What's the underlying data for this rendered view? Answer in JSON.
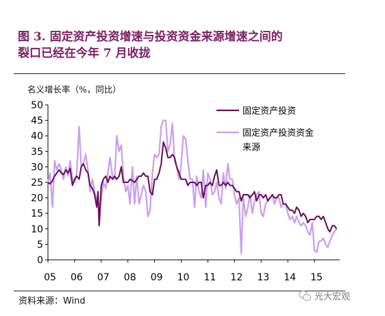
{
  "header": {
    "title_line1": "图 3.   固定资产投资增速与投资资金来源增速之间的",
    "title_line2": "裂口已经在今年 7 月收拢"
  },
  "footer": {
    "source": "资料来源：Wind"
  },
  "watermark": {
    "text": "光大宏观",
    "icon": "wechat-icon"
  },
  "colors": {
    "title": "#7b1f63",
    "series1": "#6b0f5a",
    "series2": "#c9a0f0"
  },
  "chart_data": {
    "type": "line",
    "ylabel": "名义增长率（%，同比）",
    "xlabel": "",
    "ylim": [
      0,
      50
    ],
    "yticks": [
      "0",
      "5",
      "10",
      "15",
      "20",
      "25",
      "30",
      "35",
      "40",
      "45",
      "50"
    ],
    "xticks": [
      "05",
      "06",
      "07",
      "08",
      "09",
      "10",
      "11",
      "12",
      "13",
      "14",
      "15"
    ],
    "xlim": [
      2005,
      2015.95
    ],
    "grid": false,
    "legend_position": "top-right",
    "series": [
      {
        "name": "固定资产投资",
        "color": "#6b0f5a",
        "points": [
          [
            2005.0,
            25
          ],
          [
            2005.08,
            24.5
          ],
          [
            2005.17,
            25.5
          ],
          [
            2005.25,
            27
          ],
          [
            2005.33,
            28
          ],
          [
            2005.42,
            29
          ],
          [
            2005.5,
            28
          ],
          [
            2005.58,
            27.5
          ],
          [
            2005.67,
            29
          ],
          [
            2005.75,
            28
          ],
          [
            2005.83,
            29.5
          ],
          [
            2005.92,
            24
          ],
          [
            2006.0,
            26
          ],
          [
            2006.08,
            27
          ],
          [
            2006.17,
            26
          ],
          [
            2006.25,
            30
          ],
          [
            2006.33,
            31
          ],
          [
            2006.42,
            29
          ],
          [
            2006.5,
            28
          ],
          [
            2006.58,
            24
          ],
          [
            2006.67,
            23
          ],
          [
            2006.75,
            21
          ],
          [
            2006.83,
            17
          ],
          [
            2006.88,
            22
          ],
          [
            2006.92,
            11
          ],
          [
            2007.0,
            24
          ],
          [
            2007.08,
            26
          ],
          [
            2007.17,
            27
          ],
          [
            2007.25,
            25
          ],
          [
            2007.33,
            27
          ],
          [
            2007.42,
            26
          ],
          [
            2007.5,
            27
          ],
          [
            2007.58,
            26
          ],
          [
            2007.67,
            27
          ],
          [
            2007.75,
            30
          ],
          [
            2007.83,
            25
          ],
          [
            2007.92,
            25
          ],
          [
            2008.0,
            25
          ],
          [
            2008.08,
            26
          ],
          [
            2008.17,
            25.5
          ],
          [
            2008.25,
            25
          ],
          [
            2008.33,
            26
          ],
          [
            2008.42,
            27
          ],
          [
            2008.5,
            27
          ],
          [
            2008.58,
            28
          ],
          [
            2008.67,
            27
          ],
          [
            2008.75,
            27
          ],
          [
            2008.83,
            22
          ],
          [
            2008.92,
            21
          ],
          [
            2009.0,
            26
          ],
          [
            2009.08,
            26
          ],
          [
            2009.17,
            28
          ],
          [
            2009.25,
            31
          ],
          [
            2009.33,
            38
          ],
          [
            2009.42,
            36
          ],
          [
            2009.5,
            33
          ],
          [
            2009.58,
            33
          ],
          [
            2009.67,
            34
          ],
          [
            2009.75,
            33
          ],
          [
            2009.83,
            30
          ],
          [
            2009.92,
            28
          ],
          [
            2010.0,
            26
          ],
          [
            2010.08,
            26
          ],
          [
            2010.17,
            26
          ],
          [
            2010.25,
            24
          ],
          [
            2010.33,
            25
          ],
          [
            2010.42,
            25
          ],
          [
            2010.5,
            25
          ],
          [
            2010.58,
            24
          ],
          [
            2010.67,
            25
          ],
          [
            2010.75,
            25
          ],
          [
            2010.83,
            20
          ],
          [
            2010.92,
            24
          ],
          [
            2011.0,
            24
          ],
          [
            2011.08,
            25
          ],
          [
            2011.17,
            24
          ],
          [
            2011.25,
            27
          ],
          [
            2011.33,
            29
          ],
          [
            2011.42,
            24
          ],
          [
            2011.5,
            24
          ],
          [
            2011.58,
            25
          ],
          [
            2011.67,
            24
          ],
          [
            2011.75,
            25
          ],
          [
            2011.83,
            24
          ],
          [
            2011.92,
            24
          ],
          [
            2012.0,
            23
          ],
          [
            2012.08,
            22
          ],
          [
            2012.17,
            22
          ],
          [
            2012.25,
            19
          ],
          [
            2012.33,
            21
          ],
          [
            2012.42,
            21
          ],
          [
            2012.5,
            21
          ],
          [
            2012.58,
            20
          ],
          [
            2012.67,
            21
          ],
          [
            2012.75,
            22
          ],
          [
            2012.83,
            19
          ],
          [
            2012.92,
            21
          ],
          [
            2013.0,
            21
          ],
          [
            2013.08,
            20
          ],
          [
            2013.17,
            21
          ],
          [
            2013.25,
            19
          ],
          [
            2013.33,
            20
          ],
          [
            2013.42,
            21
          ],
          [
            2013.5,
            20
          ],
          [
            2013.58,
            20
          ],
          [
            2013.67,
            21
          ],
          [
            2013.75,
            21
          ],
          [
            2013.83,
            18
          ],
          [
            2013.92,
            18
          ],
          [
            2014.0,
            17
          ],
          [
            2014.08,
            16
          ],
          [
            2014.17,
            16
          ],
          [
            2014.25,
            15
          ],
          [
            2014.33,
            17
          ],
          [
            2014.42,
            16
          ],
          [
            2014.5,
            14
          ],
          [
            2014.58,
            15
          ],
          [
            2014.67,
            14
          ],
          [
            2014.75,
            12
          ],
          [
            2014.83,
            13
          ],
          [
            2014.92,
            13
          ],
          [
            2015.0,
            13
          ],
          [
            2015.08,
            14
          ],
          [
            2015.17,
            14
          ],
          [
            2015.25,
            13
          ],
          [
            2015.33,
            14
          ],
          [
            2015.42,
            12
          ],
          [
            2015.5,
            10
          ],
          [
            2015.58,
            9
          ],
          [
            2015.67,
            11
          ],
          [
            2015.75,
            11
          ],
          [
            2015.83,
            10
          ]
        ]
      },
      {
        "name": "固定资产投资资金来源",
        "color": "#c9a0f0",
        "points": [
          [
            2005.0,
            25
          ],
          [
            2005.08,
            28
          ],
          [
            2005.17,
            17
          ],
          [
            2005.25,
            32
          ],
          [
            2005.33,
            29
          ],
          [
            2005.42,
            31
          ],
          [
            2005.5,
            29
          ],
          [
            2005.58,
            26
          ],
          [
            2005.67,
            30
          ],
          [
            2005.75,
            27
          ],
          [
            2005.83,
            32
          ],
          [
            2005.92,
            26
          ],
          [
            2006.0,
            25
          ],
          [
            2006.08,
            28
          ],
          [
            2006.17,
            43
          ],
          [
            2006.25,
            30
          ],
          [
            2006.33,
            31
          ],
          [
            2006.42,
            34
          ],
          [
            2006.5,
            29
          ],
          [
            2006.58,
            22
          ],
          [
            2006.67,
            26
          ],
          [
            2006.75,
            22
          ],
          [
            2006.83,
            19
          ],
          [
            2006.88,
            21
          ],
          [
            2006.92,
            11
          ],
          [
            2007.0,
            20
          ],
          [
            2007.08,
            25
          ],
          [
            2007.17,
            23
          ],
          [
            2007.25,
            28
          ],
          [
            2007.33,
            33
          ],
          [
            2007.42,
            27
          ],
          [
            2007.5,
            26
          ],
          [
            2007.58,
            40
          ],
          [
            2007.67,
            35
          ],
          [
            2007.75,
            37
          ],
          [
            2007.83,
            27
          ],
          [
            2007.92,
            22
          ],
          [
            2008.0,
            24
          ],
          [
            2008.08,
            18
          ],
          [
            2008.17,
            30
          ],
          [
            2008.25,
            18
          ],
          [
            2008.33,
            27
          ],
          [
            2008.42,
            18
          ],
          [
            2008.5,
            21
          ],
          [
            2008.58,
            24
          ],
          [
            2008.67,
            22
          ],
          [
            2008.75,
            14
          ],
          [
            2008.83,
            16
          ],
          [
            2008.92,
            28
          ],
          [
            2009.0,
            34
          ],
          [
            2009.08,
            33
          ],
          [
            2009.17,
            34
          ],
          [
            2009.25,
            43
          ],
          [
            2009.33,
            45
          ],
          [
            2009.42,
            45
          ],
          [
            2009.5,
            35
          ],
          [
            2009.58,
            37
          ],
          [
            2009.67,
            44
          ],
          [
            2009.75,
            32
          ],
          [
            2009.83,
            30
          ],
          [
            2009.92,
            26
          ],
          [
            2010.0,
            31
          ],
          [
            2010.08,
            40
          ],
          [
            2010.17,
            39
          ],
          [
            2010.25,
            32
          ],
          [
            2010.33,
            26
          ],
          [
            2010.42,
            26
          ],
          [
            2010.5,
            17
          ],
          [
            2010.58,
            27
          ],
          [
            2010.67,
            22
          ],
          [
            2010.75,
            20
          ],
          [
            2010.83,
            29
          ],
          [
            2010.92,
            17
          ],
          [
            2011.0,
            28
          ],
          [
            2011.08,
            26
          ],
          [
            2011.17,
            21
          ],
          [
            2011.25,
            22
          ],
          [
            2011.33,
            25
          ],
          [
            2011.42,
            20
          ],
          [
            2011.5,
            18
          ],
          [
            2011.58,
            28
          ],
          [
            2011.67,
            23
          ],
          [
            2011.75,
            31
          ],
          [
            2011.83,
            26
          ],
          [
            2011.92,
            26
          ],
          [
            2012.0,
            21
          ],
          [
            2012.08,
            18
          ],
          [
            2012.17,
            20
          ],
          [
            2012.25,
            2
          ],
          [
            2012.33,
            20
          ],
          [
            2012.42,
            14
          ],
          [
            2012.5,
            17
          ],
          [
            2012.58,
            21
          ],
          [
            2012.67,
            15
          ],
          [
            2012.75,
            19
          ],
          [
            2012.83,
            21
          ],
          [
            2012.92,
            22
          ],
          [
            2013.0,
            15
          ],
          [
            2013.08,
            14
          ],
          [
            2013.17,
            18
          ],
          [
            2013.25,
            19
          ],
          [
            2013.33,
            20
          ],
          [
            2013.42,
            21
          ],
          [
            2013.5,
            18
          ],
          [
            2013.58,
            20
          ],
          [
            2013.67,
            20
          ],
          [
            2013.75,
            17
          ],
          [
            2013.83,
            18
          ],
          [
            2013.92,
            18
          ],
          [
            2014.0,
            15
          ],
          [
            2014.08,
            13
          ],
          [
            2014.17,
            14
          ],
          [
            2014.25,
            12
          ],
          [
            2014.33,
            14
          ],
          [
            2014.42,
            12
          ],
          [
            2014.5,
            11
          ],
          [
            2014.58,
            12
          ],
          [
            2014.67,
            11
          ],
          [
            2014.75,
            9
          ],
          [
            2014.83,
            8
          ],
          [
            2014.92,
            12
          ],
          [
            2015.0,
            3
          ],
          [
            2015.08,
            2.5
          ],
          [
            2015.17,
            6
          ],
          [
            2015.25,
            6
          ],
          [
            2015.33,
            7
          ],
          [
            2015.42,
            5
          ],
          [
            2015.5,
            4
          ],
          [
            2015.58,
            6
          ],
          [
            2015.67,
            8
          ],
          [
            2015.75,
            9
          ],
          [
            2015.83,
            10
          ]
        ]
      }
    ]
  }
}
